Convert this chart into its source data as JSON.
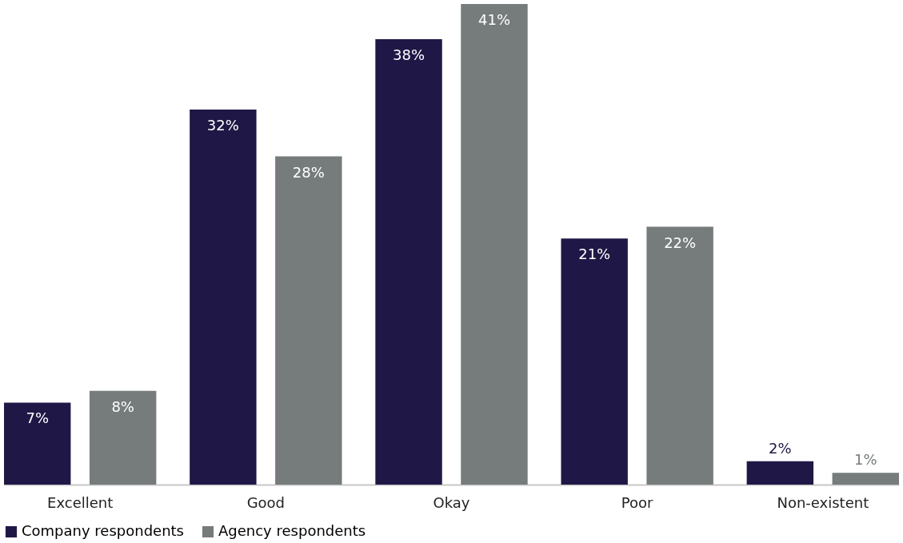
{
  "chart_data": {
    "type": "bar",
    "categories": [
      "Excellent",
      "Good",
      "Okay",
      "Poor",
      "Non-existent"
    ],
    "series": [
      {
        "name": "Company respondents",
        "color": "#1f1846",
        "values": [
          7,
          32,
          38,
          21,
          2
        ],
        "value_labels": [
          "7%",
          "32%",
          "38%",
          "21%",
          "2%"
        ]
      },
      {
        "name": "Agency respondents",
        "color": "#767b7c",
        "values": [
          8,
          28,
          41,
          22,
          1
        ],
        "value_labels": [
          "8%",
          "28%",
          "41%",
          "22%",
          "1%"
        ]
      }
    ],
    "legend": "bottom"
  }
}
